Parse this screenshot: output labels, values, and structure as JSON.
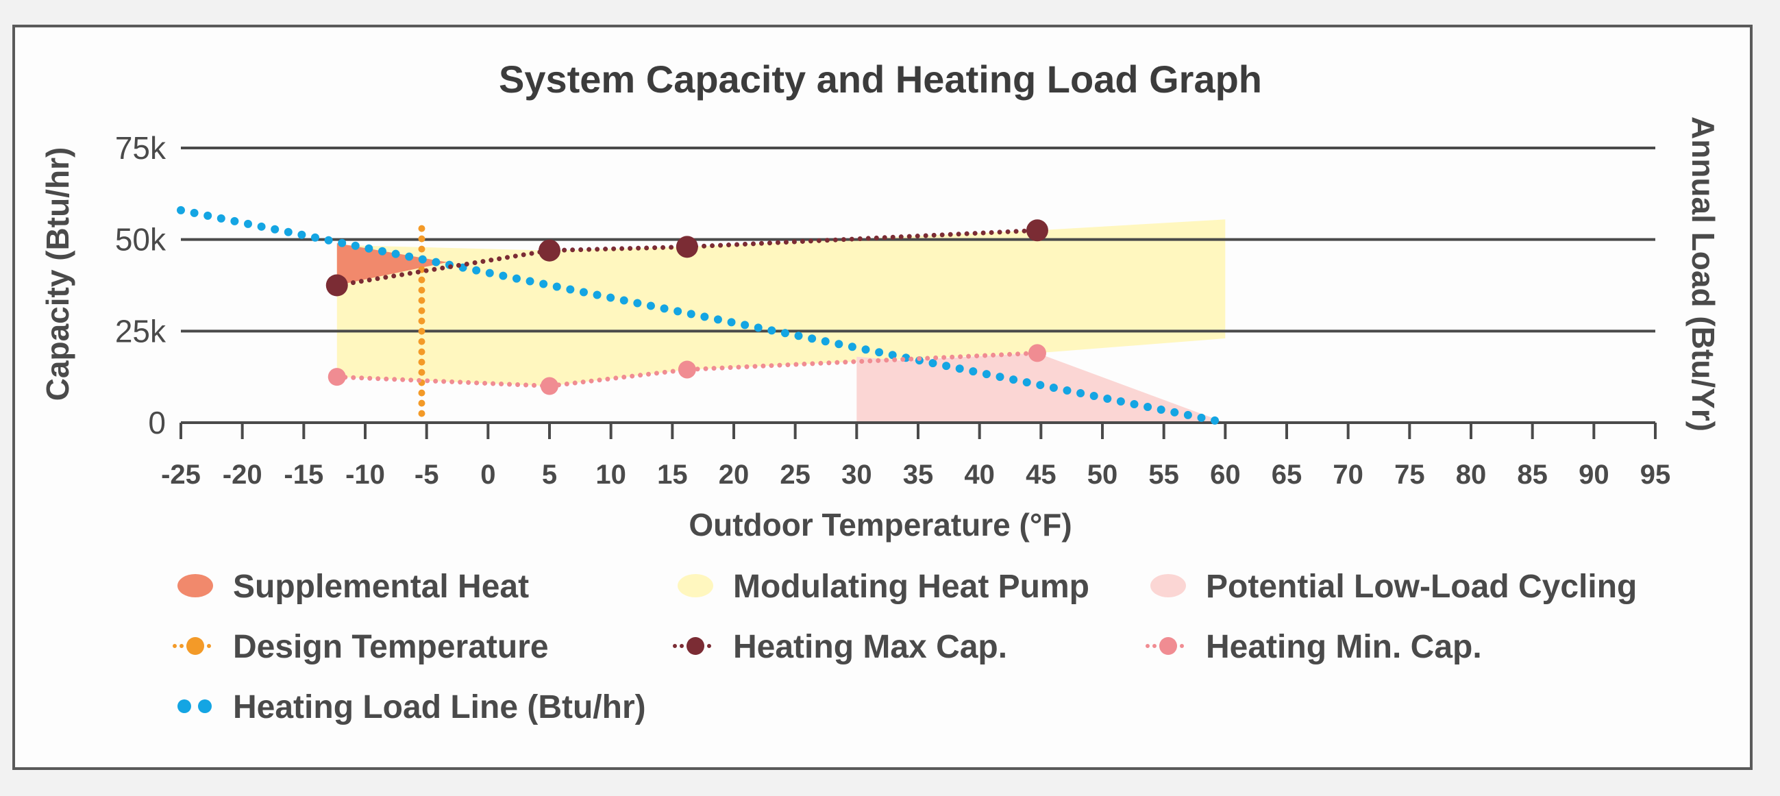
{
  "chart_data": {
    "type": "line",
    "title": "System Capacity and Heating Load Graph",
    "xlabel": "Outdoor Temperature (°F)",
    "ylabel": "Capacity (Btu/hr)",
    "y2label": "Annual Load (Btu/Yr)",
    "xlim": [
      -25,
      95
    ],
    "ylim": [
      0,
      75000
    ],
    "x_ticks": [
      "-25",
      "-20",
      "-15",
      "-10",
      "-5",
      "0",
      "5",
      "10",
      "15",
      "20",
      "25",
      "30",
      "35",
      "40",
      "45",
      "50",
      "55",
      "60",
      "65",
      "70",
      "75",
      "80",
      "85",
      "90",
      "95"
    ],
    "y_ticks": [
      {
        "value": 0,
        "label": "0"
      },
      {
        "value": 25000,
        "label": "25k"
      },
      {
        "value": 50000,
        "label": "50k"
      },
      {
        "value": 75000,
        "label": "75k"
      }
    ],
    "grid": "horizontal",
    "legend_position": "bottom",
    "series": [
      {
        "key": "max",
        "name": "Heating Max Cap.",
        "x": [
          -12.3,
          5,
          16.2,
          44.7
        ],
        "y": [
          37500,
          47000,
          48000,
          52500
        ],
        "color": "#7b2c34"
      },
      {
        "key": "min",
        "name": "Heating Min. Cap.",
        "x": [
          -12.3,
          5,
          16.2,
          44.7
        ],
        "y": [
          12500,
          10000,
          14500,
          19000
        ],
        "color": "#f08c92"
      },
      {
        "key": "load",
        "name": "Heating Load Line (Btu/hr)",
        "x": [
          -25,
          60
        ],
        "y": [
          58000,
          0
        ],
        "color": "#14a5e3"
      },
      {
        "key": "design",
        "name": "Design Temperature",
        "x": [
          -5.4,
          -5.4
        ],
        "y": [
          53000,
          0
        ],
        "color": "#f39a28"
      }
    ],
    "areas": [
      {
        "key": "supp",
        "name": "Supplemental Heat",
        "color": "#f1896c",
        "points": [
          [
            -12.3,
            49000
          ],
          [
            -12.3,
            37500
          ],
          [
            -3.3,
            43800
          ]
        ]
      },
      {
        "key": "mod",
        "name": "Modulating Heat Pump",
        "color": "#fff7bf",
        "points": [
          [
            -12.3,
            48500
          ],
          [
            5,
            47000
          ],
          [
            16.2,
            48000
          ],
          [
            44.7,
            52500
          ],
          [
            60,
            55500
          ],
          [
            60,
            23000
          ],
          [
            44.7,
            19000
          ],
          [
            16.2,
            14500
          ],
          [
            5,
            10000
          ],
          [
            -12.3,
            12500
          ]
        ]
      },
      {
        "key": "low",
        "name": "Potential Low-Load Cycling",
        "color": "#fbd6d4",
        "points": [
          [
            30,
            18000
          ],
          [
            33.5,
            17000
          ],
          [
            44.7,
            19000
          ],
          [
            60,
            0
          ],
          [
            30,
            0
          ]
        ]
      }
    ]
  },
  "legend": [
    {
      "label": "Supplemental Heat",
      "icon": "blob",
      "color": "#f1896c"
    },
    {
      "label": "Modulating Heat Pump",
      "icon": "blob",
      "color": "#fff7bf"
    },
    {
      "label": "Potential Low-Load Cycling",
      "icon": "blob",
      "color": "#fbd6d4"
    },
    {
      "label": "Design Temperature",
      "icon": "dotted-line-marker",
      "color": "#f39a28"
    },
    {
      "label": "Heating Max Cap.",
      "icon": "dotted-line-marker",
      "color": "#7b2c34"
    },
    {
      "label": "Heating Min. Cap.",
      "icon": "dotted-line-marker",
      "color": "#f08c92"
    },
    {
      "label": "Heating Load Line (Btu/hr)",
      "icon": "dots",
      "color": "#14a5e3"
    }
  ]
}
